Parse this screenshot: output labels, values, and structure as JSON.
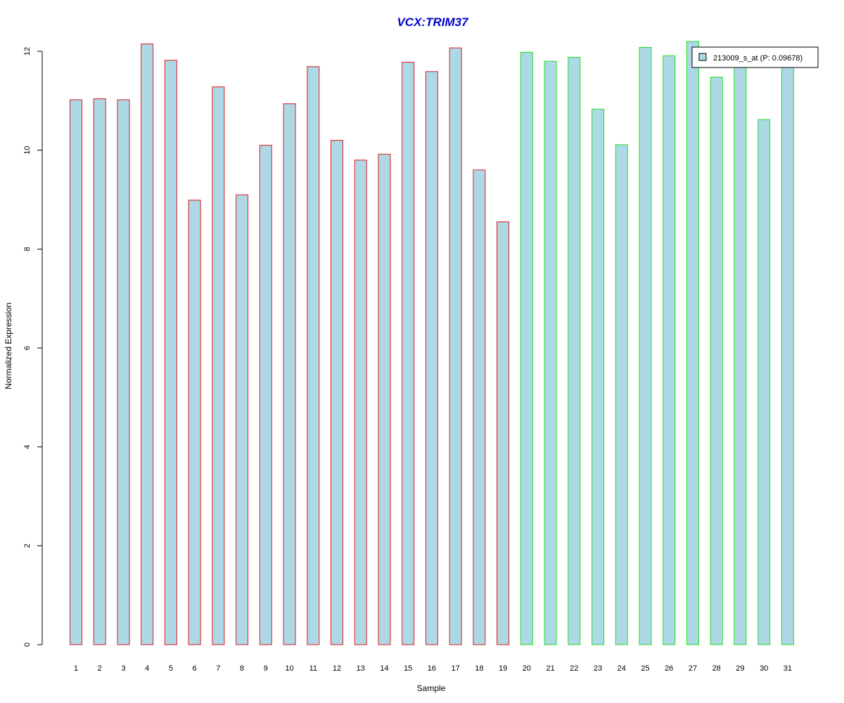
{
  "chart_data": {
    "type": "bar",
    "title": "VCX:TRIM37",
    "xlabel": "Sample",
    "ylabel": "Normalized Expression",
    "ylim": [
      0,
      12
    ],
    "yticks": [
      0,
      2,
      4,
      6,
      8,
      10,
      12
    ],
    "grid": false,
    "legend_position": "top-right",
    "categories": [
      "1",
      "2",
      "3",
      "4",
      "5",
      "6",
      "7",
      "8",
      "9",
      "10",
      "11",
      "12",
      "13",
      "14",
      "15",
      "16",
      "17",
      "18",
      "19",
      "20",
      "21",
      "22",
      "23",
      "24",
      "25",
      "26",
      "27",
      "28",
      "29",
      "30",
      "31"
    ],
    "series": [
      {
        "name": "213009_s_at (P: 0.09678)",
        "values": [
          11.02,
          11.04,
          11.02,
          12.15,
          11.82,
          8.99,
          11.28,
          9.1,
          10.1,
          10.94,
          11.69,
          10.2,
          9.8,
          9.92,
          11.78,
          11.59,
          12.07,
          9.6,
          8.55,
          11.98,
          11.8,
          11.88,
          10.83,
          10.11,
          12.08,
          11.91,
          12.2,
          11.48,
          11.7,
          10.62,
          11.75
        ],
        "fill_color": "#add8e6"
      }
    ],
    "border_colors": [
      "#e31a1c",
      "#e31a1c",
      "#e31a1c",
      "#e31a1c",
      "#e31a1c",
      "#e31a1c",
      "#e31a1c",
      "#e31a1c",
      "#e31a1c",
      "#e31a1c",
      "#e31a1c",
      "#e31a1c",
      "#e31a1c",
      "#e31a1c",
      "#e31a1c",
      "#e31a1c",
      "#e31a1c",
      "#e31a1c",
      "#e31a1c",
      "#22dd22",
      "#22dd22",
      "#22dd22",
      "#22dd22",
      "#22dd22",
      "#22dd22",
      "#22dd22",
      "#22dd22",
      "#22dd22",
      "#22dd22",
      "#22dd22",
      "#22dd22"
    ],
    "title_color": "#0000cc"
  }
}
